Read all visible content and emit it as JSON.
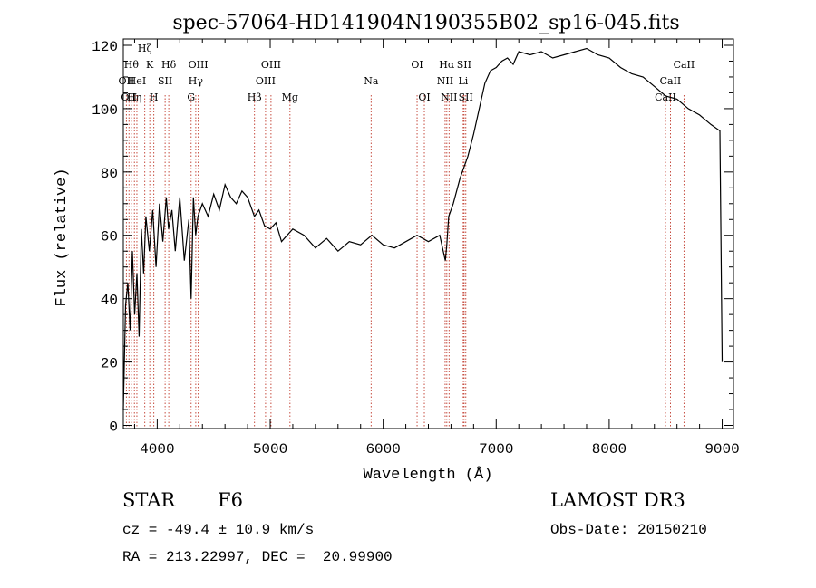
{
  "chart_data": {
    "type": "line",
    "title": "spec-57064-HD141904N190355B02_sp16-045.fits",
    "xlabel": "Wavelength (Å)",
    "ylabel": "Flux (relative)",
    "xlim": [
      3700,
      9100
    ],
    "ylim": [
      -1,
      122
    ],
    "xticks": [
      4000,
      5000,
      6000,
      7000,
      8000,
      9000
    ],
    "xtick_labels": [
      "4000",
      "5000",
      "6000",
      "7000",
      "8000",
      "9000"
    ],
    "yticks": [
      0,
      20,
      40,
      60,
      80,
      100,
      120
    ],
    "ytick_labels": [
      "0",
      "20",
      "40",
      "60",
      "80",
      "100",
      "120"
    ],
    "series": [
      {
        "name": "flux",
        "x": [
          3700,
          3720,
          3740,
          3760,
          3780,
          3800,
          3820,
          3840,
          3860,
          3880,
          3900,
          3930,
          3960,
          3990,
          4020,
          4050,
          4080,
          4100,
          4130,
          4160,
          4200,
          4240,
          4280,
          4300,
          4320,
          4340,
          4360,
          4400,
          4450,
          4500,
          4550,
          4600,
          4650,
          4700,
          4750,
          4800,
          4860,
          4900,
          4950,
          5000,
          5050,
          5100,
          5150,
          5200,
          5300,
          5400,
          5500,
          5600,
          5700,
          5800,
          5900,
          6000,
          6100,
          6200,
          6300,
          6400,
          6500,
          6550,
          6563,
          6580,
          6620,
          6680,
          6750,
          6800,
          6850,
          6900,
          6950,
          7000,
          7050,
          7100,
          7150,
          7200,
          7300,
          7400,
          7500,
          7600,
          7700,
          7800,
          7900,
          8000,
          8100,
          8200,
          8300,
          8400,
          8500,
          8600,
          8700,
          8800,
          8900,
          8980,
          9000
        ],
        "y": [
          5,
          38,
          45,
          30,
          55,
          35,
          48,
          28,
          62,
          48,
          66,
          55,
          68,
          50,
          70,
          58,
          72,
          62,
          68,
          55,
          72,
          52,
          65,
          40,
          72,
          60,
          66,
          70,
          66,
          73,
          68,
          76,
          72,
          70,
          74,
          72,
          66,
          68,
          63,
          62,
          64,
          58,
          60,
          62,
          60,
          56,
          59,
          55,
          58,
          57,
          60,
          57,
          56,
          58,
          60,
          58,
          60,
          52,
          57,
          66,
          70,
          78,
          85,
          92,
          100,
          108,
          112,
          113,
          115,
          116,
          114,
          118,
          117,
          118,
          116,
          117,
          118,
          119,
          117,
          116,
          113,
          111,
          110,
          107,
          104,
          103,
          100,
          98,
          95,
          93,
          20
        ]
      }
    ],
    "lines": [
      {
        "wave": 3727,
        "label": "OII",
        "row": 2
      },
      {
        "wave": 3750,
        "label": "OII",
        "row": 3
      },
      {
        "wave": 3771,
        "label": "Hθ",
        "row": 1
      },
      {
        "wave": 3798,
        "label": "Hη",
        "row": 3
      },
      {
        "wave": 3820,
        "label": "HeI",
        "row": 2
      },
      {
        "wave": 3890,
        "label": "Hζ",
        "row": 0
      },
      {
        "wave": 3934,
        "label": "K",
        "row": 1
      },
      {
        "wave": 3970,
        "label": "H",
        "row": 3
      },
      {
        "wave": 4070,
        "label": "SII",
        "row": 2
      },
      {
        "wave": 4102,
        "label": "Hδ",
        "row": 1
      },
      {
        "wave": 4300,
        "label": "G",
        "row": 3
      },
      {
        "wave": 4341,
        "label": "Hγ",
        "row": 2
      },
      {
        "wave": 4363,
        "label": "OIII",
        "row": 1
      },
      {
        "wave": 4861,
        "label": "Hβ",
        "row": 3
      },
      {
        "wave": 4959,
        "label": "OIII",
        "row": 2
      },
      {
        "wave": 5007,
        "label": "OIII",
        "row": 1
      },
      {
        "wave": 5175,
        "label": "Mg",
        "row": 3
      },
      {
        "wave": 5893,
        "label": "Na",
        "row": 2
      },
      {
        "wave": 6300,
        "label": "OI",
        "row": 1
      },
      {
        "wave": 6364,
        "label": "OI",
        "row": 3
      },
      {
        "wave": 6548,
        "label": "NII",
        "row": 2
      },
      {
        "wave": 6563,
        "label": "Hα",
        "row": 1
      },
      {
        "wave": 6583,
        "label": "NII",
        "row": 3
      },
      {
        "wave": 6708,
        "label": "Li",
        "row": 2
      },
      {
        "wave": 6716,
        "label": "SII",
        "row": 1
      },
      {
        "wave": 6731,
        "label": "SII",
        "row": 3
      },
      {
        "wave": 8498,
        "label": "CaII",
        "row": 3
      },
      {
        "wave": 8542,
        "label": "CaII",
        "row": 2
      },
      {
        "wave": 8662,
        "label": "CaII",
        "row": 1
      }
    ],
    "line_color": "#c0392b"
  },
  "info": {
    "object_class": "STAR",
    "subclass": "F6",
    "survey": "LAMOST DR3",
    "redshift": "cz = -49.4 ± 10.9 km/s",
    "obs_date": "Obs-Date: 20150210",
    "coords": "RA = 213.22997, DEC =  20.99900"
  }
}
